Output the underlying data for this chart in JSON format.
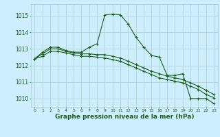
{
  "xlabel": "Graphe pression niveau de la mer (hPa)",
  "background_color": "#cceeff",
  "grid_color": "#aacccc",
  "line_color": "#1a5c1a",
  "x_ticks": [
    0,
    1,
    2,
    3,
    4,
    5,
    6,
    7,
    8,
    9,
    10,
    11,
    12,
    13,
    14,
    15,
    16,
    17,
    18,
    19,
    20,
    21,
    22,
    23
  ],
  "ylim": [
    1009.5,
    1015.7
  ],
  "yticks": [
    1010,
    1011,
    1012,
    1013,
    1014,
    1015
  ],
  "series": [
    [
      1012.4,
      1012.8,
      1013.1,
      1013.1,
      1012.9,
      1012.8,
      1012.8,
      1013.1,
      1013.3,
      1015.05,
      1015.1,
      1015.05,
      1014.5,
      1013.7,
      1013.1,
      1012.6,
      1012.5,
      1011.4,
      1011.4,
      1011.5,
      1010.0,
      1010.0,
      1010.0,
      1009.7
    ],
    [
      1012.4,
      1012.7,
      1013.0,
      1013.0,
      1012.85,
      1012.75,
      1012.7,
      1012.7,
      1012.65,
      1012.65,
      1012.55,
      1012.45,
      1012.25,
      1012.05,
      1011.85,
      1011.65,
      1011.5,
      1011.35,
      1011.25,
      1011.15,
      1010.95,
      1010.75,
      1010.5,
      1010.25
    ],
    [
      1012.4,
      1012.55,
      1012.85,
      1012.85,
      1012.75,
      1012.65,
      1012.55,
      1012.55,
      1012.5,
      1012.45,
      1012.35,
      1012.25,
      1012.05,
      1011.85,
      1011.65,
      1011.45,
      1011.25,
      1011.15,
      1011.05,
      1010.95,
      1010.75,
      1010.55,
      1010.25,
      1010.05
    ]
  ]
}
